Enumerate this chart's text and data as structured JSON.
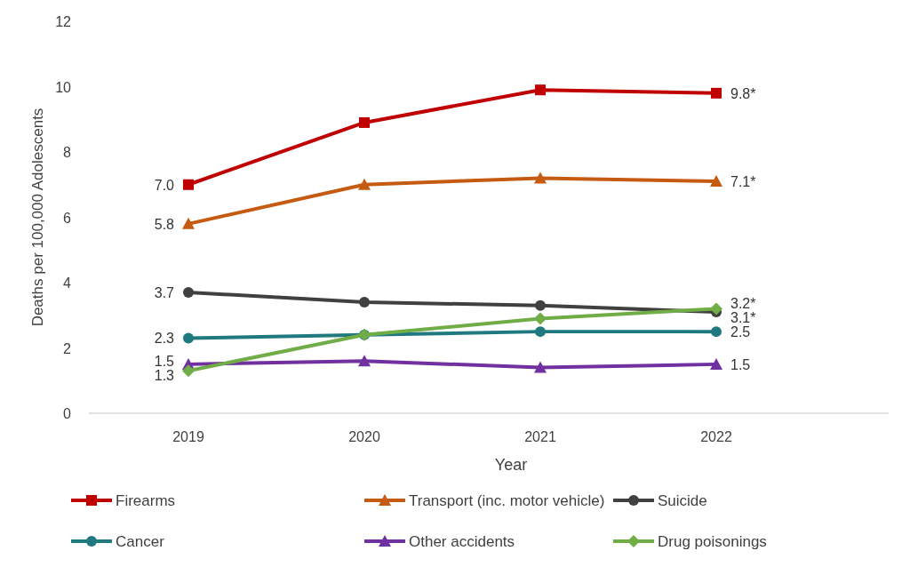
{
  "chart_data": {
    "type": "line",
    "xlabel": "Year",
    "ylabel": "Deaths per 100,000 Adolescents",
    "categories": [
      "2019",
      "2020",
      "2021",
      "2022"
    ],
    "ylim": [
      0,
      12
    ],
    "yticks": [
      0,
      2,
      4,
      6,
      8,
      10,
      12
    ],
    "grid": false,
    "legend": "bottom",
    "series": [
      {
        "name": "Firearms",
        "color": "#c00000",
        "marker": "square",
        "values": [
          7.0,
          8.9,
          9.9,
          9.8
        ],
        "value_labels": [
          "7.0",
          null,
          null,
          "9.8*"
        ]
      },
      {
        "name": "Transport (inc. motor vehicle)",
        "color": "#c55a11",
        "marker": "triangle",
        "values": [
          5.8,
          7.0,
          7.2,
          7.1
        ],
        "value_labels": [
          "5.8",
          null,
          null,
          "7.1*"
        ]
      },
      {
        "name": "Suicide",
        "color": "#404040",
        "marker": "circle",
        "values": [
          3.7,
          3.4,
          3.3,
          3.1
        ],
        "value_labels": [
          "3.7",
          null,
          null,
          "3.1*"
        ]
      },
      {
        "name": "Cancer",
        "color": "#1f7a80",
        "marker": "circle",
        "values": [
          2.3,
          2.4,
          2.5,
          2.5
        ],
        "value_labels": [
          "2.3",
          null,
          null,
          "2.5"
        ]
      },
      {
        "name": "Other accidents",
        "color": "#7030a0",
        "marker": "triangle",
        "values": [
          1.5,
          1.6,
          1.4,
          1.5
        ],
        "value_labels": [
          "1.5",
          null,
          null,
          "1.5"
        ]
      },
      {
        "name": "Drug poisonings",
        "color": "#70ad47",
        "marker": "diamond",
        "values": [
          1.3,
          2.4,
          2.9,
          3.2
        ],
        "value_labels": [
          "1.3",
          null,
          null,
          "3.2*"
        ]
      }
    ]
  }
}
